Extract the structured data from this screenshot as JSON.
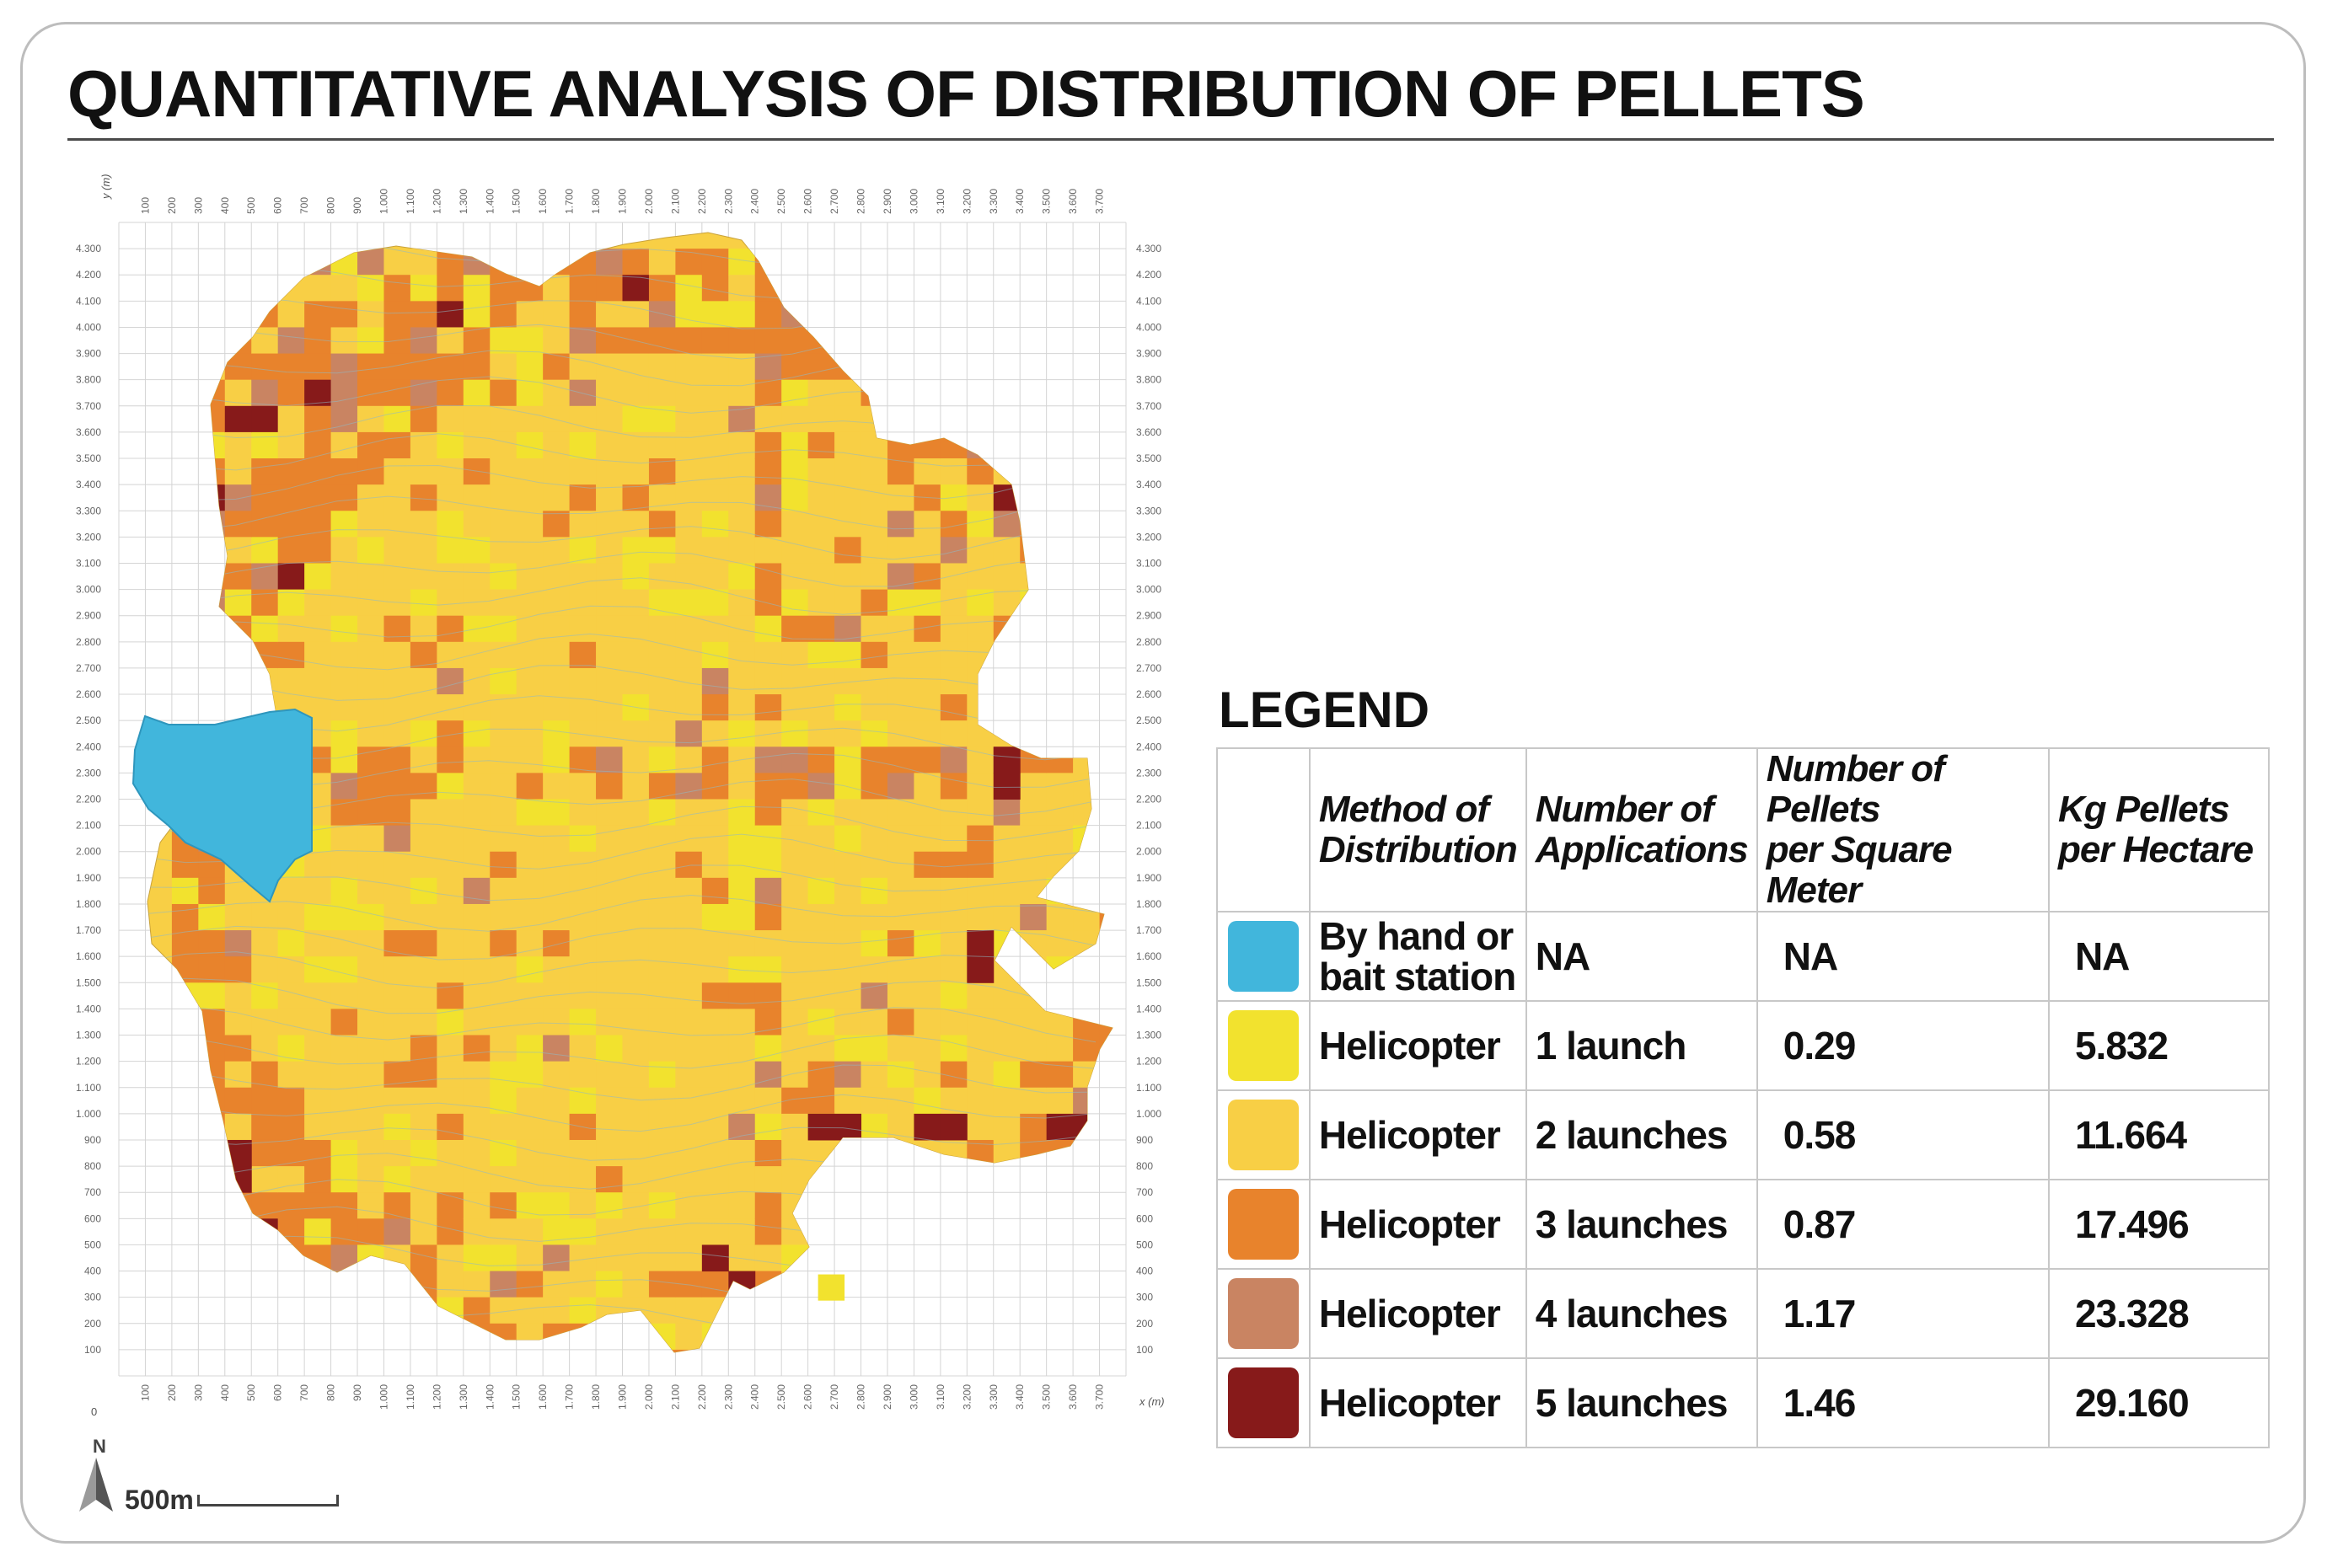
{
  "title": "QUANTITATIVE ANALYSIS OF DISTRIBUTION OF PELLETS",
  "map": {
    "y_axis_label": "y (m)",
    "x_axis_label": "x (m)",
    "x_ticks": [
      "100",
      "200",
      "300",
      "400",
      "500",
      "600",
      "700",
      "800",
      "900",
      "1.000",
      "1.100",
      "1.200",
      "1.300",
      "1.400",
      "1.500",
      "1.600",
      "1.700",
      "1.800",
      "1.900",
      "2.000",
      "2.100",
      "2.200",
      "2.300",
      "2.400",
      "2.500",
      "2.600",
      "2.700",
      "2.800",
      "2.900",
      "3.000",
      "3.100",
      "3.200",
      "3.300",
      "3.400",
      "3.500",
      "3.600",
      "3.700"
    ],
    "y_ticks": [
      "4.300",
      "4.200",
      "4.100",
      "4.000",
      "3.900",
      "3.800",
      "3.700",
      "3.600",
      "3.500",
      "3.400",
      "3.300",
      "3.200",
      "3.100",
      "3.000",
      "2.900",
      "2.800",
      "2.700",
      "2.600",
      "2.500",
      "2.400",
      "2.300",
      "2.200",
      "2.100",
      "2.000",
      "1.900",
      "1.800",
      "1.700",
      "1.600",
      "1.500",
      "1.400",
      "1.300",
      "1.200",
      "1.100",
      "1.000",
      "900",
      "800",
      "700",
      "600",
      "500",
      "400",
      "300",
      "200",
      "100"
    ],
    "origin_label": "0",
    "north_label": "N",
    "scale_label": "500m"
  },
  "legend": {
    "title": "LEGEND",
    "headers": {
      "method": [
        "Method of",
        "Distribution"
      ],
      "applications": [
        "Number of",
        "Applications"
      ],
      "pellets": [
        "Number of Pellets",
        "per Square Meter"
      ],
      "kg": [
        "Kg Pellets",
        "per Hectare"
      ]
    },
    "rows": [
      {
        "color": "#41b6dc",
        "method": [
          "By hand or",
          "bait station"
        ],
        "applications": "NA",
        "pellets": "NA",
        "kg": "NA"
      },
      {
        "color": "#f2e22e",
        "method": [
          "Helicopter"
        ],
        "applications": "1 launch",
        "pellets": "0.29",
        "kg": "5.832"
      },
      {
        "color": "#f8cf45",
        "method": [
          "Helicopter"
        ],
        "applications": "2 launches",
        "pellets": "0.58",
        "kg": "11.664"
      },
      {
        "color": "#e8832c",
        "method": [
          "Helicopter"
        ],
        "applications": "3 launches",
        "pellets": "0.87",
        "kg": "17.496"
      },
      {
        "color": "#c98462",
        "method": [
          "Helicopter"
        ],
        "applications": "4 launches",
        "pellets": "1.17",
        "kg": "23.328"
      },
      {
        "color": "#871a1a",
        "method": [
          "Helicopter"
        ],
        "applications": "5 launches",
        "pellets": "1.46",
        "kg": "29.160"
      }
    ]
  }
}
